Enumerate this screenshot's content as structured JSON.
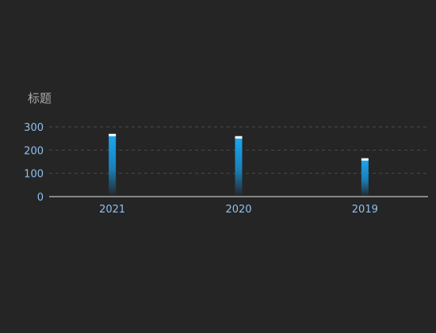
{
  "chart_data": {
    "type": "bar",
    "title": "标题",
    "categories": [
      "2021",
      "2020",
      "2019"
    ],
    "values": [
      265,
      255,
      160
    ],
    "ylim": [
      0,
      300
    ],
    "yticks": [
      0,
      100,
      200,
      300
    ],
    "grid": true,
    "xlabel": "",
    "ylabel": "",
    "colors": {
      "bar_top": "#1ba7f0",
      "bar_bottom": "#252525",
      "cap": "#ffffff",
      "tick_text": "#8fc0ee",
      "title_text": "#a9a9a9",
      "grid": "#4a4a4a",
      "axis": "#e6e6e6",
      "background": "#252525"
    }
  }
}
